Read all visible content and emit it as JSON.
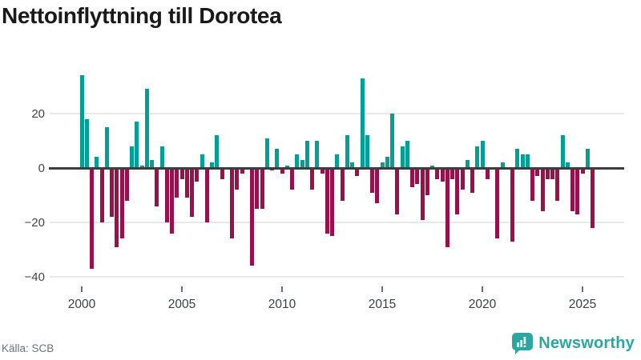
{
  "title": "Nettoinflyttning till Dorotea",
  "source": "Källa: SCB",
  "brand": {
    "name": "Newsworthy",
    "color": "#2ba7a1"
  },
  "colors": {
    "positive": "#00a099",
    "negative": "#9b104b",
    "gridline": "#e7e7ea",
    "zero_line": "#3d3d3d",
    "title_text": "#191919",
    "axis_text": "#3c4247",
    "source_text": "#6a737b"
  },
  "chart_data": {
    "type": "bar",
    "title": "Nettoinflyttning till Dorotea",
    "frequency": "quarterly",
    "start_year": 2000,
    "start_quarter": 1,
    "end_year": 2025,
    "end_quarter": 3,
    "grid": true,
    "ylim": [
      -42,
      36
    ],
    "x_ticks": [
      2000,
      2005,
      2010,
      2015,
      2020,
      2025
    ],
    "y_ticks": [
      {
        "value": 20,
        "label": "20"
      },
      {
        "value": 0,
        "label": "0"
      },
      {
        "value": -20,
        "label": "−20"
      },
      {
        "value": -40,
        "label": "−40"
      }
    ],
    "series": [
      {
        "name": "Nettoinflyttning",
        "values": [
          34,
          18,
          -37,
          4,
          -20,
          15,
          -18,
          -29,
          -26,
          -12,
          8,
          17,
          1,
          29,
          3,
          -14,
          8,
          -20,
          -24,
          -11,
          -4,
          -11,
          -18,
          -5,
          5,
          -20,
          2,
          12,
          -4,
          0,
          -26,
          -8,
          -2,
          0,
          -36,
          -15,
          -15,
          11,
          -1,
          7,
          -2,
          1,
          -8,
          5,
          3,
          10,
          -8,
          10,
          -2,
          -24,
          -25,
          5,
          -12,
          12,
          2,
          -3,
          33,
          12,
          -9,
          -13,
          2,
          4,
          20,
          -17,
          8,
          10,
          -7,
          -6,
          -19,
          -10,
          1,
          -4,
          -5,
          -29,
          -4,
          -17,
          -8,
          3,
          -9,
          8,
          10,
          -4,
          0,
          -26,
          2,
          0,
          -27,
          7,
          5,
          5,
          -12,
          -3,
          -16,
          -4,
          -4,
          -12,
          12,
          2,
          -16,
          -17,
          -2,
          7,
          -22
        ]
      }
    ]
  }
}
